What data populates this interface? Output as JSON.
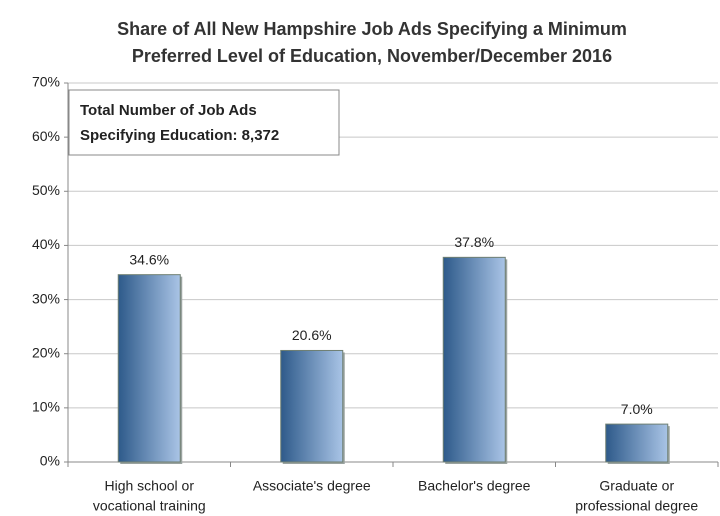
{
  "chart_data": {
    "type": "bar",
    "title": [
      "Share of All New Hampshire Job Ads Specifying a Minimum",
      "Preferred Level of Education, November/December 2016"
    ],
    "annotation": [
      "Total Number of Job Ads",
      "Specifying Education: 8,372"
    ],
    "categories": [
      [
        "High school or",
        "vocational training"
      ],
      [
        "Associate's degree"
      ],
      [
        "Bachelor's degree"
      ],
      [
        "Graduate or",
        "professional degree"
      ]
    ],
    "values": [
      34.6,
      20.6,
      37.8,
      7.0
    ],
    "value_labels": [
      "34.6%",
      "20.6%",
      "37.8%",
      "7.0%"
    ],
    "color": [
      "#2e5a8a",
      "#a9c4e6"
    ],
    "ylim": [
      0,
      70
    ],
    "yticks": [
      {
        "value": 0,
        "label": "0%"
      },
      {
        "value": 10,
        "label": "10%"
      },
      {
        "value": 20,
        "label": "20%"
      },
      {
        "value": 30,
        "label": "30%"
      },
      {
        "value": 40,
        "label": "40%"
      },
      {
        "value": 50,
        "label": "50%"
      },
      {
        "value": 60,
        "label": "60%"
      },
      {
        "value": 70,
        "label": "70%"
      }
    ],
    "grid": true
  }
}
